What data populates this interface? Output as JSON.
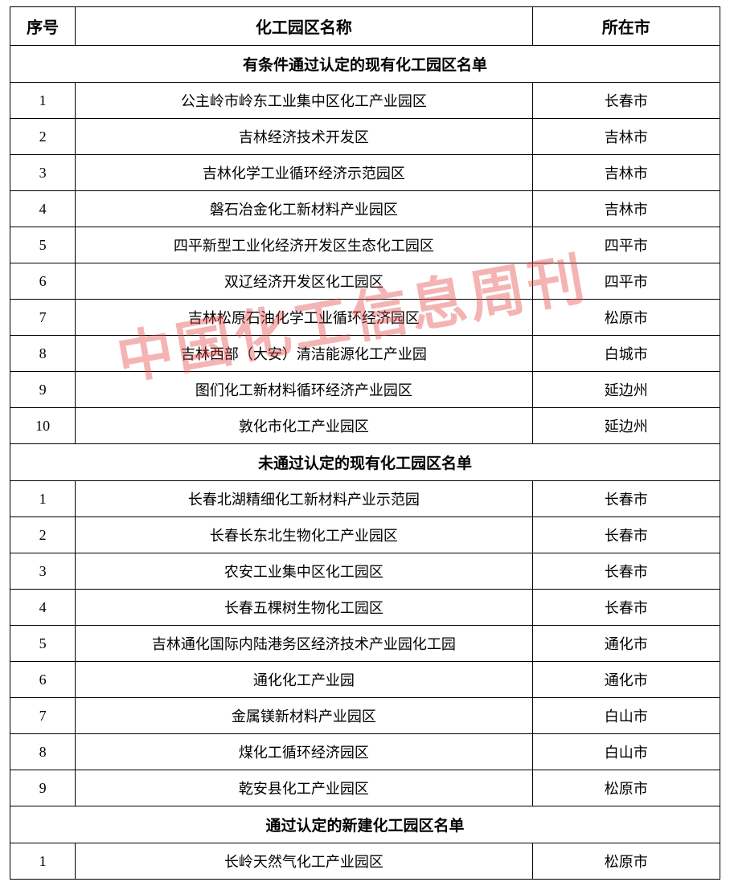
{
  "columns": {
    "seq": "序号",
    "name": "化工园区名称",
    "city": "所在市"
  },
  "sections": [
    {
      "title": "有条件通过认定的现有化工园区名单",
      "rows": [
        {
          "seq": "1",
          "name": "公主岭市岭东工业集中区化工产业园区",
          "city": "长春市"
        },
        {
          "seq": "2",
          "name": "吉林经济技术开发区",
          "city": "吉林市"
        },
        {
          "seq": "3",
          "name": "吉林化学工业循环经济示范园区",
          "city": "吉林市"
        },
        {
          "seq": "4",
          "name": "磐石冶金化工新材料产业园区",
          "city": "吉林市"
        },
        {
          "seq": "5",
          "name": "四平新型工业化经济开发区生态化工园区",
          "city": "四平市"
        },
        {
          "seq": "6",
          "name": "双辽经济开发区化工园区",
          "city": "四平市"
        },
        {
          "seq": "7",
          "name": "吉林松原石油化学工业循环经济园区",
          "city": "松原市"
        },
        {
          "seq": "8",
          "name": "吉林西部（大安）清洁能源化工产业园",
          "city": "白城市"
        },
        {
          "seq": "9",
          "name": "图们化工新材料循环经济产业园区",
          "city": "延边州"
        },
        {
          "seq": "10",
          "name": "敦化市化工产业园区",
          "city": "延边州"
        }
      ]
    },
    {
      "title": "未通过认定的现有化工园区名单",
      "rows": [
        {
          "seq": "1",
          "name": "长春北湖精细化工新材料产业示范园",
          "city": "长春市"
        },
        {
          "seq": "2",
          "name": "长春长东北生物化工产业园区",
          "city": "长春市"
        },
        {
          "seq": "3",
          "name": "农安工业集中区化工园区",
          "city": "长春市"
        },
        {
          "seq": "4",
          "name": "长春五棵树生物化工园区",
          "city": "长春市"
        },
        {
          "seq": "5",
          "name": "吉林通化国际内陆港务区经济技术产业园化工园",
          "city": "通化市"
        },
        {
          "seq": "6",
          "name": "通化化工产业园",
          "city": "通化市"
        },
        {
          "seq": "7",
          "name": "金属镁新材料产业园区",
          "city": "白山市"
        },
        {
          "seq": "8",
          "name": "煤化工循环经济园区",
          "city": "白山市"
        },
        {
          "seq": "9",
          "name": "乾安县化工产业园区",
          "city": "松原市"
        }
      ]
    },
    {
      "title": "通过认定的新建化工园区名单",
      "rows": [
        {
          "seq": "1",
          "name": "长岭天然气化工产业园区",
          "city": "松原市"
        }
      ]
    }
  ],
  "watermark": "中国化工信息周刊",
  "style": {
    "border_color": "#000000",
    "text_color": "#000000",
    "background_color": "#ffffff",
    "watermark_color": "#e54545",
    "watermark_opacity": 0.4,
    "header_fontsize": 20,
    "cell_fontsize": 18,
    "section_fontsize": 19,
    "watermark_fontsize": 70
  }
}
